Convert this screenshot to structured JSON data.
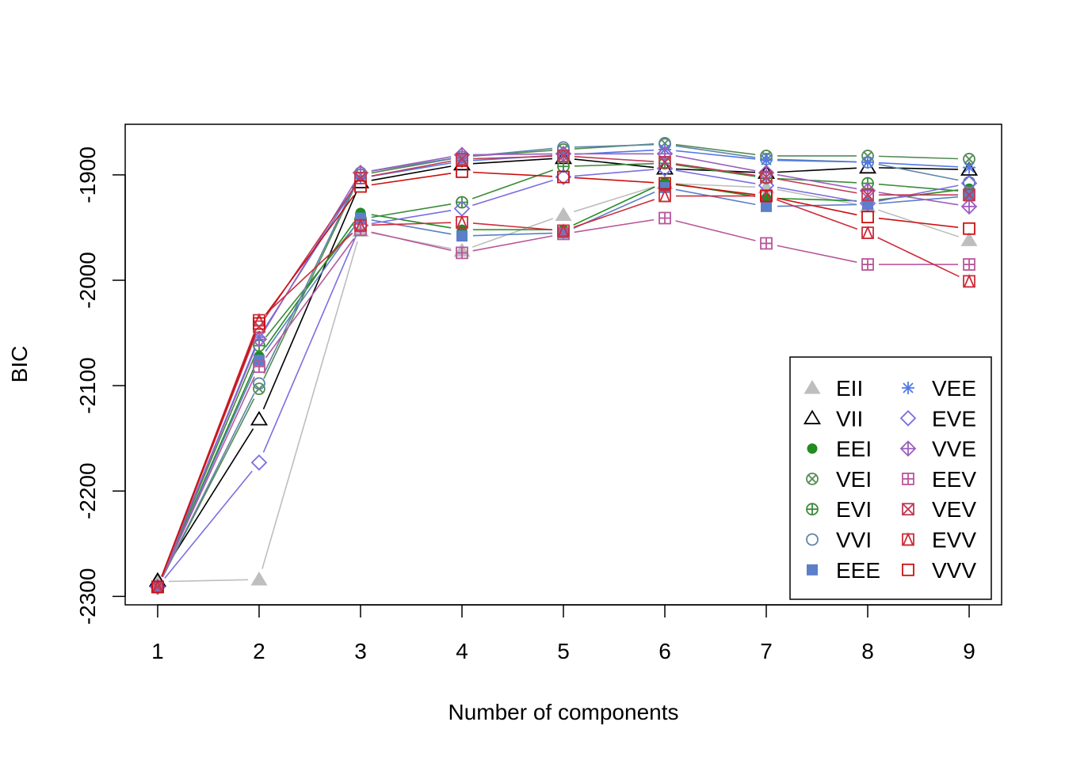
{
  "chart_data": {
    "type": "line",
    "title": "",
    "xlabel": "Number of components",
    "ylabel": "BIC",
    "x": [
      1,
      2,
      3,
      4,
      5,
      6,
      7,
      8,
      9
    ],
    "x_tick_labels": [
      "1",
      "2",
      "3",
      "4",
      "5",
      "6",
      "7",
      "8",
      "9"
    ],
    "y_ticks": [
      -2300,
      -2200,
      -2100,
      -2000,
      -1900
    ],
    "y_tick_labels": [
      "-2300",
      "-2200",
      "-2100",
      "-2000",
      "-1900"
    ],
    "xlim": [
      0.68,
      9.32
    ],
    "ylim": [
      -2308,
      -1852
    ],
    "grid": false,
    "legend_position": "bottom-right",
    "legend_columns": 2,
    "series": [
      {
        "name": "EII",
        "color": "#bebebe",
        "marker": "filled-triangle",
        "values": [
          -2286,
          -2284,
          -1953,
          -1972,
          -1938,
          -1908,
          -1912,
          -1930,
          -1962
        ]
      },
      {
        "name": "VII",
        "color": "#000000",
        "marker": "open-triangle",
        "values": [
          -2285,
          -2132,
          -1907,
          -1890,
          -1884,
          -1894,
          -1898,
          -1893,
          -1895
        ]
      },
      {
        "name": "EEI",
        "color": "#228b22",
        "marker": "filled-circle",
        "values": [
          -2291,
          -2072,
          -1936,
          -1952,
          -1952,
          -1907,
          -1922,
          -1925,
          -1913
        ]
      },
      {
        "name": "VEI",
        "color": "#548b54",
        "marker": "circle-x",
        "values": [
          -2291,
          -2103,
          -1900,
          -1883,
          -1876,
          -1870,
          -1882,
          -1882,
          -1885
        ]
      },
      {
        "name": "EVI",
        "color": "#3c8b3c",
        "marker": "circle-plus",
        "values": [
          -2291,
          -2062,
          -1942,
          -1926,
          -1892,
          -1889,
          -1903,
          -1908,
          -1916
        ]
      },
      {
        "name": "VVI",
        "color": "#5e85a8",
        "marker": "open-circle",
        "values": [
          -2291,
          -2098,
          -1898,
          -1883,
          -1874,
          -1871,
          -1885,
          -1888,
          -1907
        ]
      },
      {
        "name": "EEE",
        "color": "#5b7fc8",
        "marker": "filled-square",
        "values": [
          -2291,
          -2076,
          -1941,
          -1958,
          -1955,
          -1912,
          -1930,
          -1928,
          -1920
        ]
      },
      {
        "name": "VEE",
        "color": "#5378e8",
        "marker": "asterisk",
        "values": [
          -2291,
          -2054,
          -1903,
          -1887,
          -1881,
          -1876,
          -1886,
          -1888,
          -1893
        ]
      },
      {
        "name": "EVE",
        "color": "#7a6fe0",
        "marker": "open-diamond",
        "values": [
          -2291,
          -2173,
          -1948,
          -1932,
          -1902,
          -1894,
          -1910,
          -1927,
          -1908
        ]
      },
      {
        "name": "VVE",
        "color": "#9b5fc0",
        "marker": "diamond-plus",
        "values": [
          -2291,
          -2056,
          -1898,
          -1881,
          -1880,
          -1880,
          -1898,
          -1915,
          -1930
        ]
      },
      {
        "name": "EEV",
        "color": "#b8579a",
        "marker": "square-plus",
        "values": [
          -2291,
          -2082,
          -1952,
          -1974,
          -1956,
          -1941,
          -1965,
          -1985,
          -1985
        ]
      },
      {
        "name": "VEV",
        "color": "#c03a55",
        "marker": "square-x",
        "values": [
          -2291,
          -2044,
          -1903,
          -1885,
          -1882,
          -1888,
          -1902,
          -1919,
          -1919
        ]
      },
      {
        "name": "EVV",
        "color": "#cd2c3a",
        "marker": "square-triangle",
        "values": [
          -2291,
          -2038,
          -1948,
          -1945,
          -1953,
          -1920,
          -1920,
          -1955,
          -2001
        ]
      },
      {
        "name": "VVV",
        "color": "#cc1010",
        "marker": "open-square",
        "values": [
          -2291,
          -2041,
          -1911,
          -1897,
          -1902,
          -1908,
          -1920,
          -1940,
          -1951
        ]
      }
    ]
  }
}
